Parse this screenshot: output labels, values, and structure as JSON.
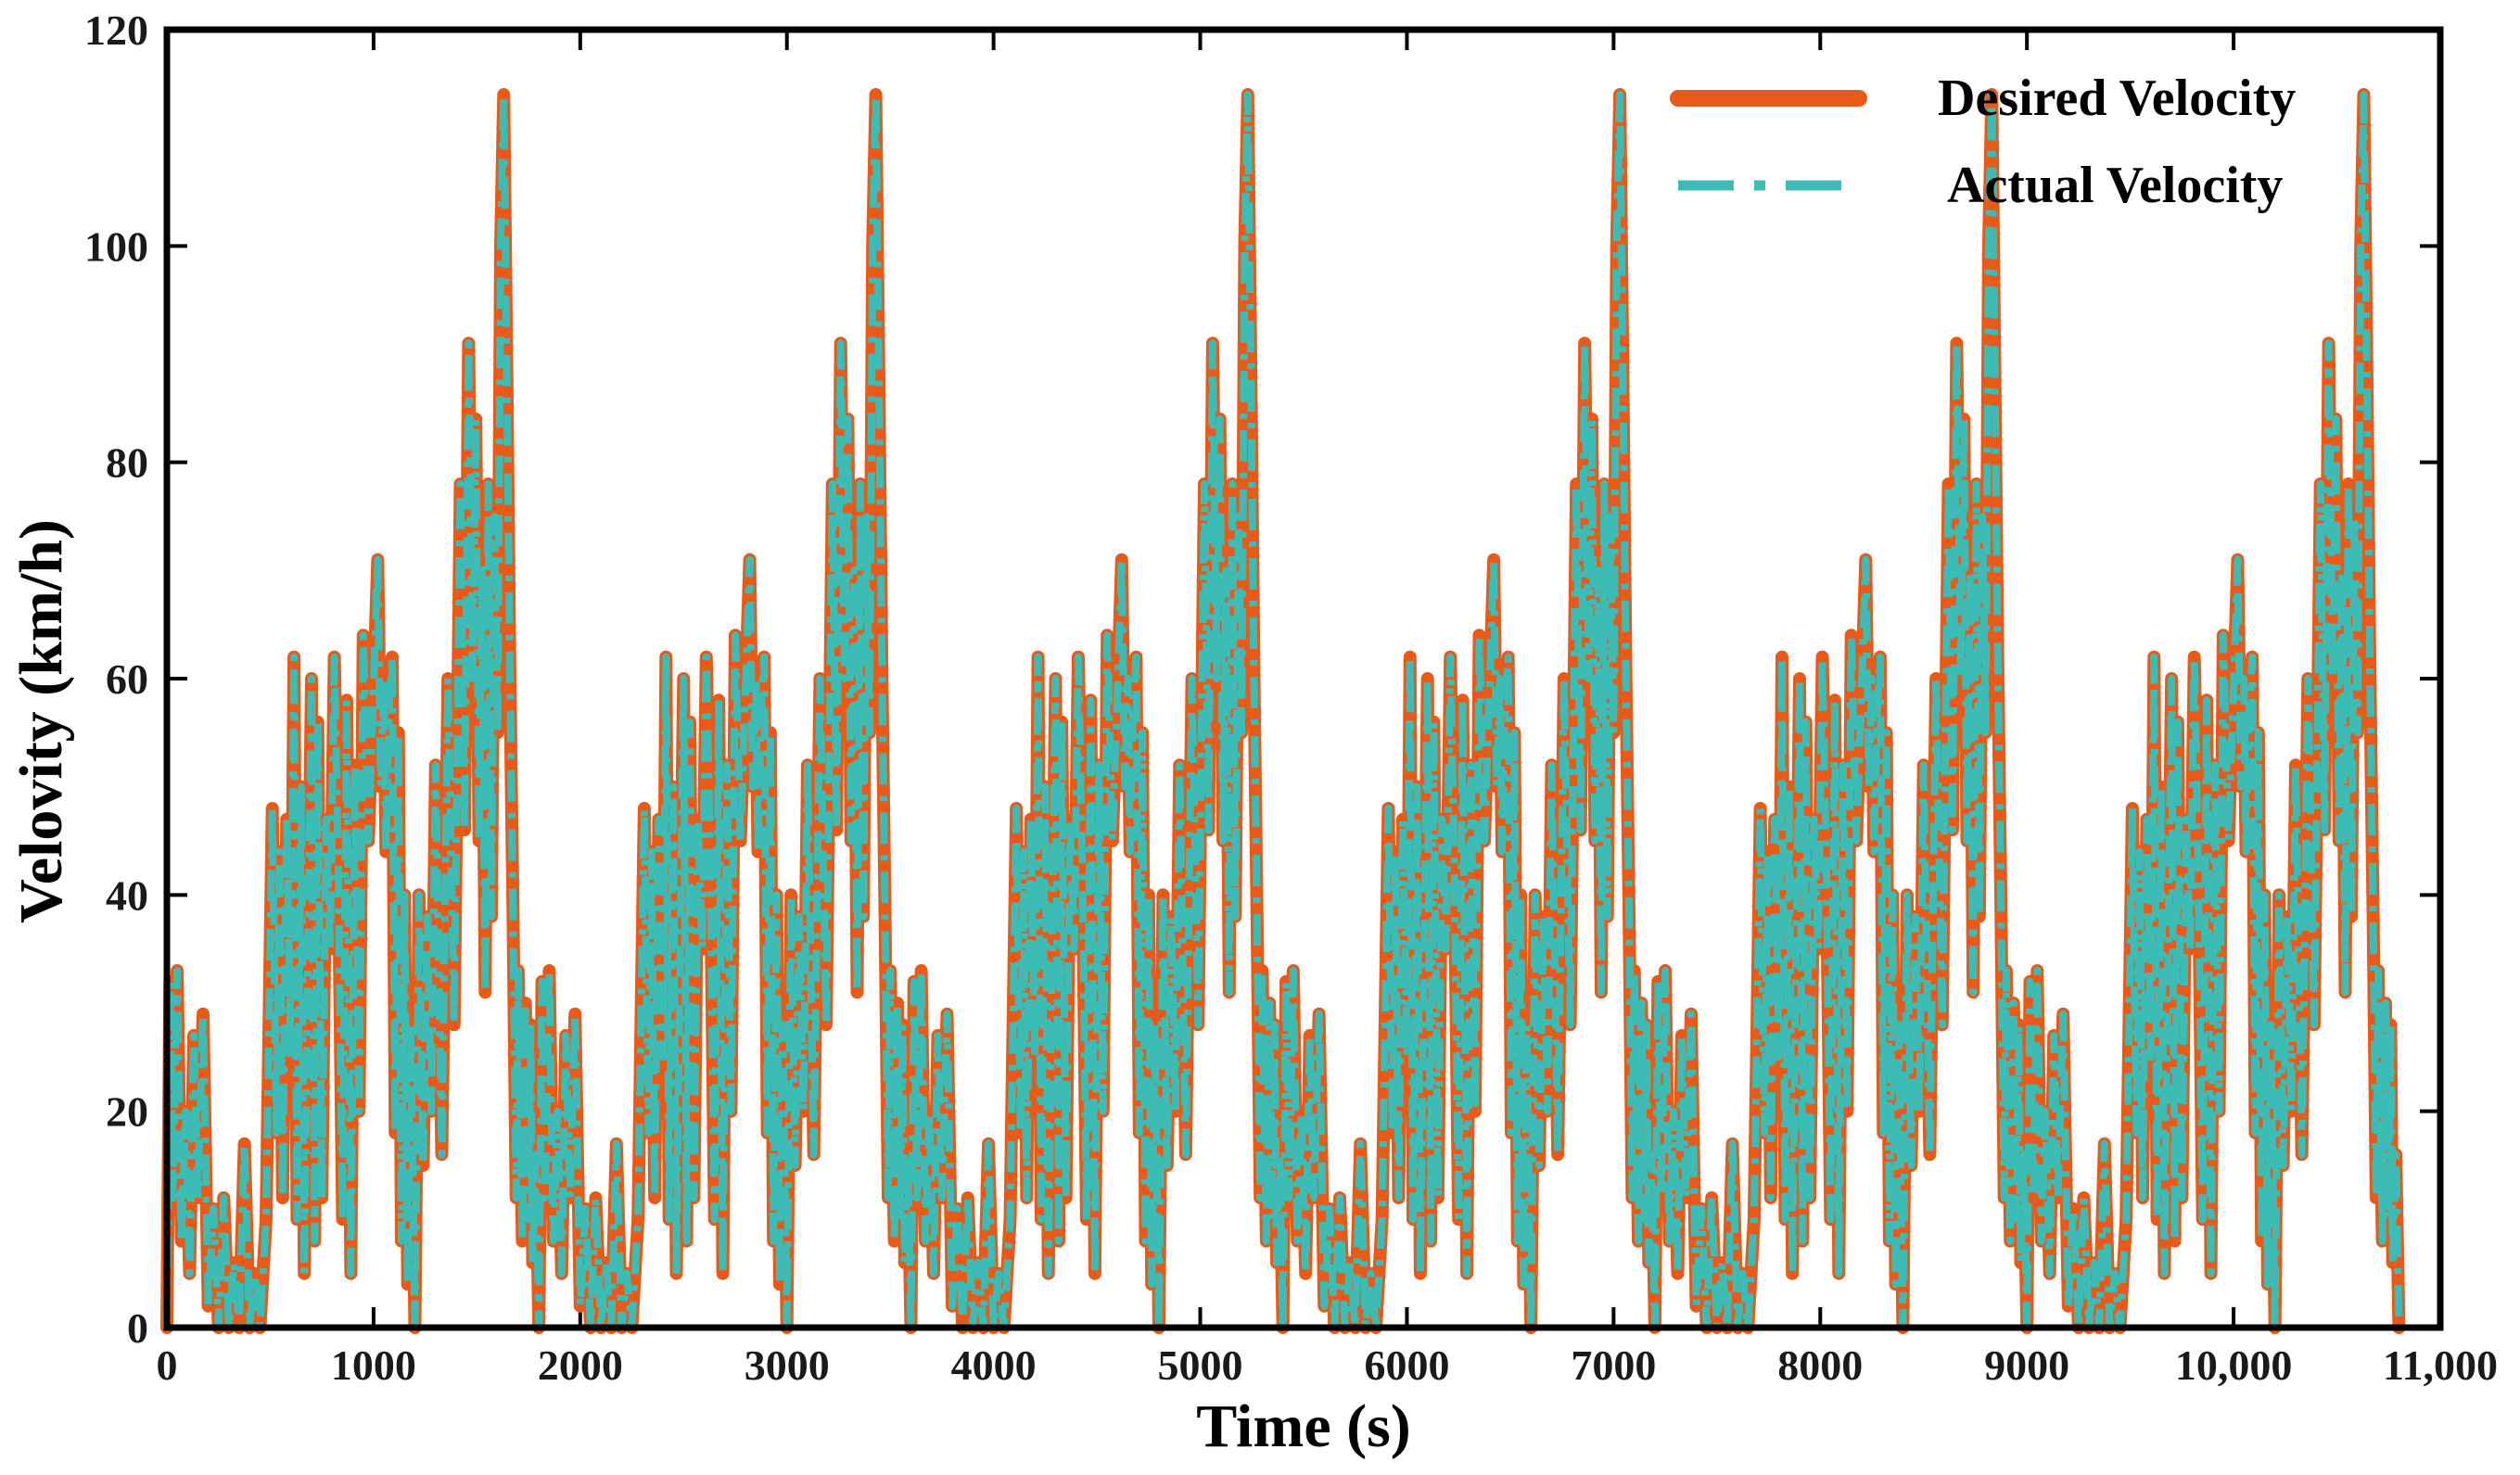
{
  "chart_data": {
    "type": "line",
    "title": "",
    "xlabel": "Time (s)",
    "ylabel": "Velovity (km/h)",
    "xlim": [
      0,
      11000
    ],
    "ylim": [
      0,
      120
    ],
    "x_ticks": [
      0,
      1000,
      2000,
      3000,
      4000,
      5000,
      6000,
      7000,
      8000,
      9000,
      10000,
      11000
    ],
    "x_tick_labels": [
      "0",
      "1000",
      "2000",
      "3000",
      "4000",
      "5000",
      "6000",
      "7000",
      "8000",
      "9000",
      "10,000",
      "11,000"
    ],
    "y_ticks": [
      0,
      20,
      40,
      60,
      80,
      100,
      120
    ],
    "y_tick_labels": [
      "0",
      "20",
      "40",
      "60",
      "80",
      "100",
      "120"
    ],
    "legend_position": "top-right",
    "cycle_length_s": 1800,
    "cycle_count": 6,
    "cycle_profile": {
      "t": [
        0,
        15,
        30,
        50,
        70,
        90,
        110,
        130,
        150,
        175,
        200,
        225,
        250,
        275,
        300,
        325,
        350,
        375,
        400,
        425,
        450,
        480,
        510,
        530,
        545,
        560,
        580,
        600,
        615,
        630,
        650,
        665,
        680,
        700,
        715,
        730,
        750,
        770,
        790,
        810,
        830,
        850,
        870,
        890,
        910,
        930,
        950,
        975,
        1000,
        1020,
        1035,
        1050,
        1060,
        1075,
        1090,
        1105,
        1120,
        1135,
        1150,
        1165,
        1180,
        1200,
        1220,
        1240,
        1260,
        1280,
        1300,
        1330,
        1360,
        1390,
        1420,
        1440,
        1460,
        1480,
        1495,
        1510,
        1525,
        1540,
        1555,
        1570,
        1585,
        1600,
        1615,
        1630,
        1645,
        1660,
        1675,
        1690,
        1700,
        1710,
        1720,
        1735,
        1750,
        1760,
        1770,
        1785,
        1800
      ],
      "v": [
        0,
        32,
        12,
        33,
        8,
        20,
        5,
        27,
        12,
        29,
        2,
        11,
        0,
        12,
        0,
        6,
        0,
        17,
        0,
        5,
        0,
        10,
        48,
        18,
        44,
        12,
        47,
        25,
        62,
        10,
        50,
        5,
        30,
        60,
        8,
        56,
        12,
        47,
        35,
        62,
        42,
        10,
        58,
        5,
        52,
        20,
        64,
        45,
        59,
        71,
        50,
        60,
        44,
        57,
        62,
        18,
        55,
        8,
        40,
        4,
        28,
        0,
        40,
        15,
        38,
        20,
        52,
        16,
        60,
        28,
        78,
        46,
        91,
        60,
        84,
        45,
        70,
        31,
        78,
        38,
        75,
        55,
        100,
        114,
        88,
        60,
        38,
        12,
        33,
        20,
        8,
        30,
        10,
        28,
        6,
        16,
        0
      ]
    },
    "series": [
      {
        "name": "Desired Velocity",
        "color": "#e85a1a",
        "style": "solid"
      },
      {
        "name": "Actual Velocity",
        "color": "#3dbcb6",
        "style": "dash-dot"
      }
    ]
  }
}
